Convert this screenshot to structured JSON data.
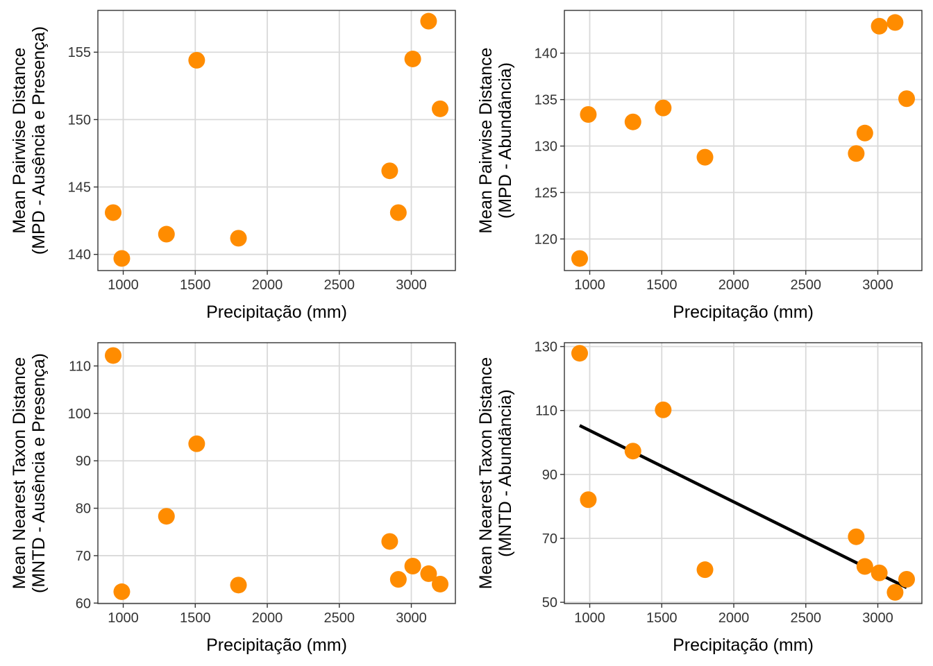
{
  "colors": {
    "point": "#FF8C00",
    "fit_line": "#000000",
    "grid": "#D9D9D9",
    "frame": "#333333"
  },
  "chart_data": [
    {
      "type": "scatter",
      "xlabel": "Precipitação (mm)",
      "ylabel": [
        "Mean Pairwise Distance",
        "(MPD - Ausência e Presença)"
      ],
      "xlim": [
        824,
        3306
      ],
      "ylim": [
        138.8,
        158.1
      ],
      "x_ticks": [
        1000,
        1500,
        2000,
        2500,
        3000
      ],
      "x_tick_labels": [
        "1000",
        "1500",
        "2000",
        "2500",
        "3000"
      ],
      "y_ticks": [
        140,
        145,
        150,
        155
      ],
      "y_tick_labels": [
        "140",
        "145",
        "150",
        "155"
      ],
      "grid": true,
      "points": [
        {
          "x": 930,
          "y": 143.1
        },
        {
          "x": 990,
          "y": 139.7
        },
        {
          "x": 1300,
          "y": 141.5
        },
        {
          "x": 1510,
          "y": 154.4
        },
        {
          "x": 1800,
          "y": 141.2
        },
        {
          "x": 2850,
          "y": 146.2
        },
        {
          "x": 2910,
          "y": 143.1
        },
        {
          "x": 3010,
          "y": 154.5
        },
        {
          "x": 3120,
          "y": 157.3
        },
        {
          "x": 3200,
          "y": 150.8
        }
      ]
    },
    {
      "type": "scatter",
      "xlabel": "Precipitação (mm)",
      "ylabel": [
        "Mean Pairwise Distance",
        "(MPD - Abundância)"
      ],
      "xlim": [
        824,
        3306
      ],
      "ylim": [
        116.6,
        144.6
      ],
      "x_ticks": [
        1000,
        1500,
        2000,
        2500,
        3000
      ],
      "x_tick_labels": [
        "1000",
        "1500",
        "2000",
        "2500",
        "3000"
      ],
      "y_ticks": [
        120,
        125,
        130,
        135,
        140
      ],
      "y_tick_labels": [
        "120",
        "125",
        "130",
        "135",
        "140"
      ],
      "grid": true,
      "points": [
        {
          "x": 930,
          "y": 117.9
        },
        {
          "x": 990,
          "y": 133.4
        },
        {
          "x": 1300,
          "y": 132.6
        },
        {
          "x": 1510,
          "y": 134.1
        },
        {
          "x": 1800,
          "y": 128.8
        },
        {
          "x": 2850,
          "y": 129.2
        },
        {
          "x": 2910,
          "y": 131.4
        },
        {
          "x": 3010,
          "y": 142.9
        },
        {
          "x": 3120,
          "y": 143.3
        },
        {
          "x": 3200,
          "y": 135.1
        }
      ]
    },
    {
      "type": "scatter",
      "xlabel": "Precipitação (mm)",
      "ylabel": [
        "Mean Nearest Taxon Distance",
        "(MNTD - Ausência e Presença)"
      ],
      "xlim": [
        824,
        3306
      ],
      "ylim": [
        59.9,
        114.9
      ],
      "x_ticks": [
        1000,
        1500,
        2000,
        2500,
        3000
      ],
      "x_tick_labels": [
        "1000",
        "1500",
        "2000",
        "2500",
        "3000"
      ],
      "y_ticks": [
        60,
        70,
        80,
        90,
        100,
        110
      ],
      "y_tick_labels": [
        "60",
        "70",
        "80",
        "90",
        "100",
        "110"
      ],
      "grid": true,
      "points": [
        {
          "x": 930,
          "y": 112.2
        },
        {
          "x": 990,
          "y": 62.4
        },
        {
          "x": 1300,
          "y": 78.3
        },
        {
          "x": 1510,
          "y": 93.6
        },
        {
          "x": 1800,
          "y": 63.8
        },
        {
          "x": 2850,
          "y": 73.0
        },
        {
          "x": 2910,
          "y": 65.0
        },
        {
          "x": 3010,
          "y": 67.8
        },
        {
          "x": 3120,
          "y": 66.2
        },
        {
          "x": 3200,
          "y": 64.0
        }
      ]
    },
    {
      "type": "scatter",
      "xlabel": "Precipitação (mm)",
      "ylabel": [
        "Mean Nearest Taxon Distance",
        "(MNTD - Abundância)"
      ],
      "xlim": [
        824,
        3306
      ],
      "ylim": [
        49.6,
        131.2
      ],
      "x_ticks": [
        1000,
        1500,
        2000,
        2500,
        3000
      ],
      "x_tick_labels": [
        "1000",
        "1500",
        "2000",
        "2500",
        "3000"
      ],
      "y_ticks": [
        50,
        70,
        90,
        110,
        130
      ],
      "y_tick_labels": [
        "50",
        "70",
        "90",
        "110",
        "130"
      ],
      "grid": true,
      "points": [
        {
          "x": 930,
          "y": 127.9
        },
        {
          "x": 990,
          "y": 82.1
        },
        {
          "x": 1300,
          "y": 97.3
        },
        {
          "x": 1510,
          "y": 110.2
        },
        {
          "x": 1800,
          "y": 60.2
        },
        {
          "x": 2850,
          "y": 70.5
        },
        {
          "x": 2910,
          "y": 61.2
        },
        {
          "x": 3010,
          "y": 59.2
        },
        {
          "x": 3120,
          "y": 53.1
        },
        {
          "x": 3200,
          "y": 57.2
        }
      ],
      "fit_line": {
        "x": [
          930,
          3200
        ],
        "y": [
          105.3,
          54.6
        ]
      }
    }
  ]
}
